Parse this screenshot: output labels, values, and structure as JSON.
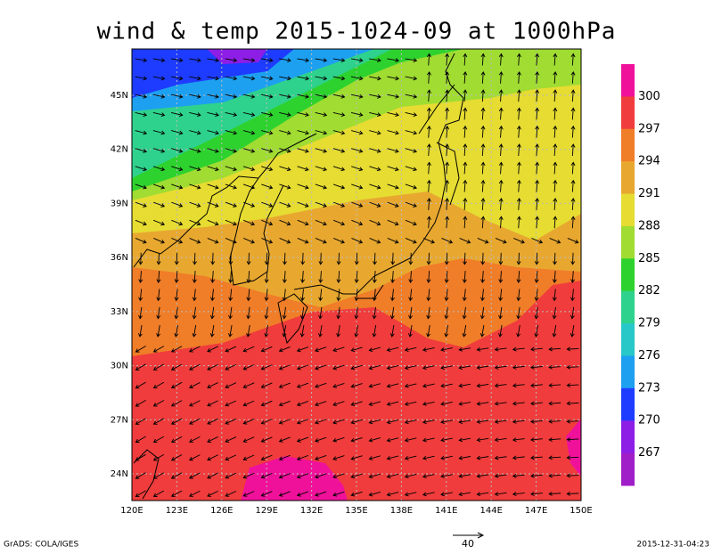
{
  "title": "wind & temp 2015-1024-09 at 1000hPa",
  "map": {
    "lat_labels": [
      "45N",
      "42N",
      "39N",
      "36N",
      "33N",
      "30N",
      "27N",
      "24N"
    ],
    "lon_labels": [
      "120E",
      "123E",
      "126E",
      "129E",
      "132E",
      "135E",
      "138E",
      "141E",
      "144E",
      "147E",
      "150E"
    ]
  },
  "colorbar": {
    "labels": [
      "300",
      "297",
      "294",
      "291",
      "288",
      "285",
      "282",
      "279",
      "276",
      "273",
      "270",
      "267"
    ],
    "colors": [
      "#f0119a",
      "#f03c3c",
      "#f07d28",
      "#e8a830",
      "#e6dc32",
      "#a0dc32",
      "#2ed22e",
      "#2ed28c",
      "#28c8c8",
      "#1ea0f0",
      "#1e3cff",
      "#8c1ee6",
      "#a01ec8"
    ]
  },
  "vector_scale": "40",
  "footer": {
    "left": "GrADS: COLA/IGES",
    "right": "2015-12-31-04:23"
  }
}
